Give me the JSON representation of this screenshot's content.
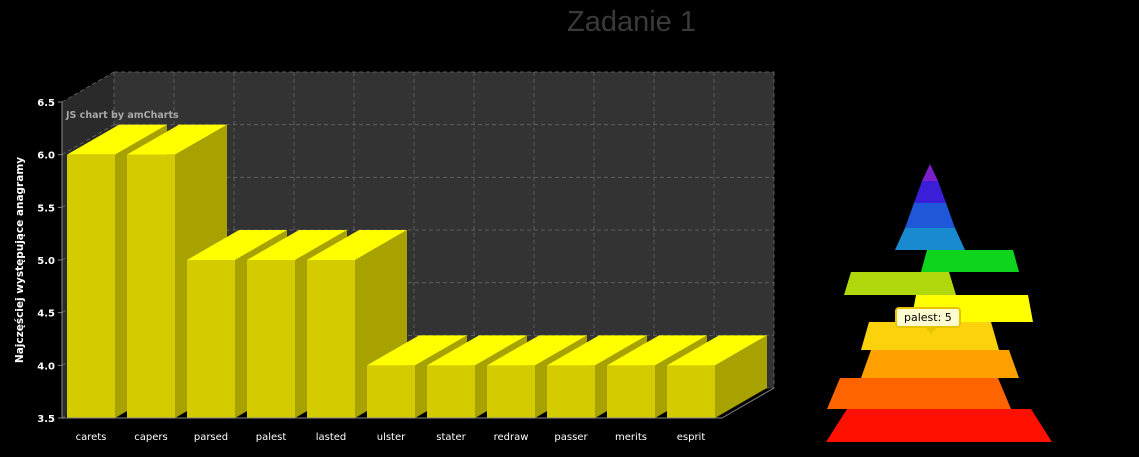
{
  "title": "Zadanie 1",
  "credit": "JS chart by amCharts",
  "chart_data": [
    {
      "type": "bar",
      "title": "",
      "xlabel": "",
      "ylabel": "Najczęściej występujące anagramy",
      "ylim": [
        3.5,
        6.5
      ],
      "yticks": [
        "3.5",
        "4.0",
        "4.5",
        "5.0",
        "5.5",
        "6.0",
        "6.5"
      ],
      "grid": true,
      "categories": [
        "carets",
        "capers",
        "parsed",
        "palest",
        "lasted",
        "ulster",
        "stater",
        "redraw",
        "passer",
        "merits",
        "esprit"
      ],
      "values": [
        6,
        6,
        5,
        5,
        5,
        4,
        4,
        4,
        4,
        4,
        4
      ],
      "colors": {
        "front": "#d4cc00",
        "top": "#ffff00",
        "side": "#a8a200"
      }
    },
    {
      "type": "pyramid",
      "tooltip": "palest: 5",
      "slices": [
        {
          "color": "#7b1fc8"
        },
        {
          "color": "#3a1fd8"
        },
        {
          "color": "#1e58d8"
        },
        {
          "color": "#1a8ad0"
        },
        {
          "color": "#0fd41e"
        },
        {
          "color": "#b0d80c"
        },
        {
          "color": "#ffff00"
        },
        {
          "color": "#fcd20c"
        },
        {
          "color": "#ffa000"
        },
        {
          "color": "#ff6400"
        },
        {
          "color": "#ff1000"
        }
      ]
    }
  ]
}
